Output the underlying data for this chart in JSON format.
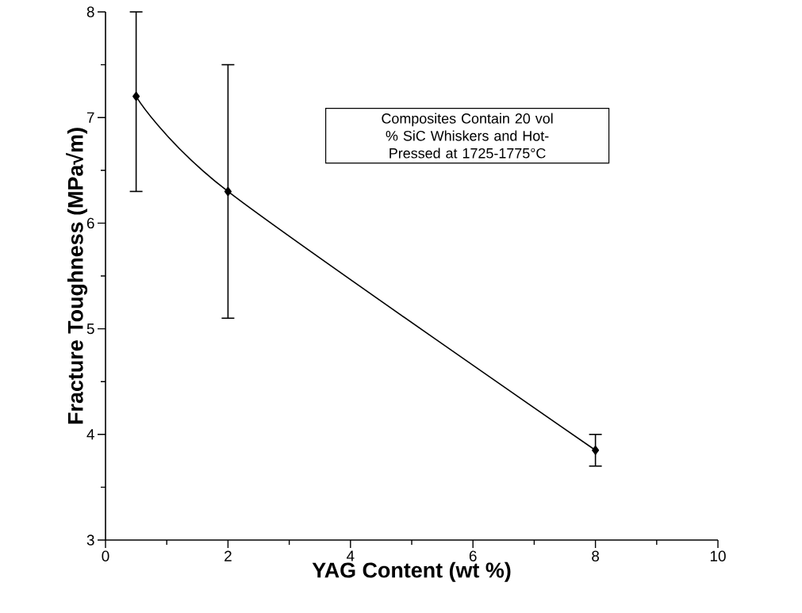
{
  "chart_data": {
    "type": "line",
    "xlabel": "YAG Content (wt %)",
    "ylabel": "Fracture Toughness (MPa√m)",
    "x": [
      0.5,
      2,
      8
    ],
    "series": [
      {
        "color": "#000000",
        "values": [
          7.2,
          6.3,
          3.85
        ],
        "errors": [
          [
            6.3,
            8.0
          ],
          [
            5.1,
            7.5
          ],
          [
            3.7,
            4.0
          ]
        ]
      }
    ],
    "xlim": [
      0,
      10
    ],
    "ylim": [
      3,
      8
    ],
    "xticks": [
      0,
      2,
      4,
      6,
      8,
      10
    ],
    "yticks": [
      3,
      4,
      5,
      6,
      7,
      8
    ],
    "marker": "diamond",
    "line_style": "solid",
    "grid": false,
    "annotations": [
      "Composites Contain 20 vol % SiC Whiskers and Hot-Pressed at 1725-1775°C"
    ]
  }
}
